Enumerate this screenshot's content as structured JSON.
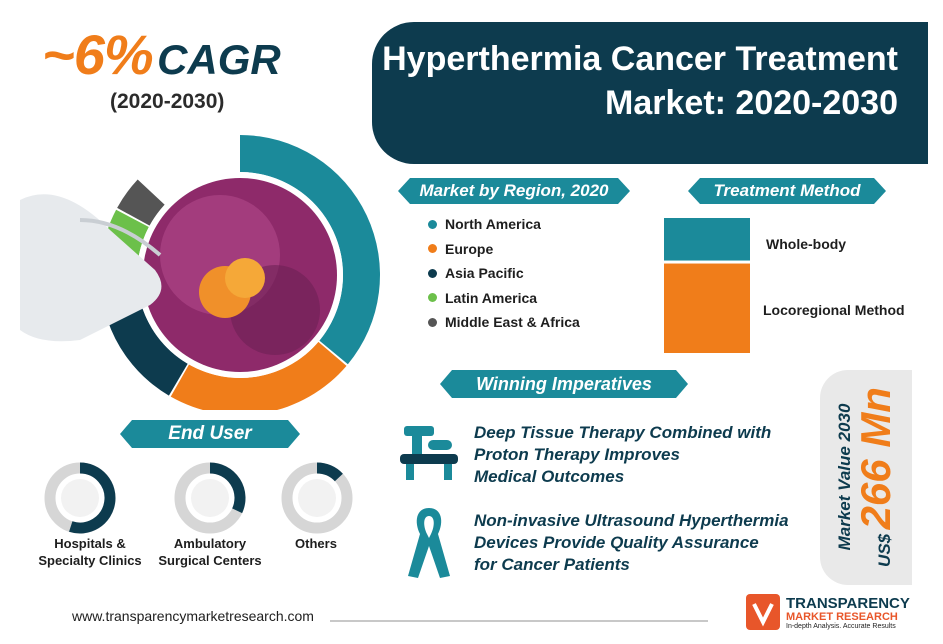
{
  "cagr": {
    "value": "~6%",
    "label": "CAGR",
    "years": "(2020-2030)"
  },
  "title": {
    "line1": "Hyperthermia Cancer Treatment",
    "line2": "Market: 2020-2030"
  },
  "colors": {
    "navy": "#0d3b4e",
    "teal": "#1b8a9a",
    "orange": "#f07d1a",
    "green": "#6cc04a",
    "gray": "#555555"
  },
  "region": {
    "heading": "Market by Region, 2020",
    "legend": [
      {
        "name": "North America",
        "color": "#1b8a9a"
      },
      {
        "name": "Europe",
        "color": "#f07d1a"
      },
      {
        "name": "Asia Pacific",
        "color": "#0d3b4e"
      },
      {
        "name": "Latin America",
        "color": "#6cc04a"
      },
      {
        "name": "Middle East & Africa",
        "color": "#555555"
      }
    ]
  },
  "treatment": {
    "heading": "Treatment Method",
    "items": [
      {
        "name": "Whole-body",
        "color": "#1b8a9a"
      },
      {
        "name": "Locoregional Method",
        "color": "#f07d1a"
      }
    ]
  },
  "end_user": {
    "heading": "End User",
    "items": [
      {
        "line1": "Hospitals &",
        "line2": "Specialty Clinics"
      },
      {
        "line1": "Ambulatory",
        "line2": "Surgical Centers"
      },
      {
        "line1": "Others",
        "line2": ""
      }
    ]
  },
  "imperatives": {
    "heading": "Winning Imperatives",
    "items": [
      {
        "line1": "Deep Tissue Therapy Combined with",
        "line2": "Proton Therapy Improves",
        "line3": "Medical Outcomes",
        "icon": "medical-scanner-icon"
      },
      {
        "line1": "Non-invasive Ultrasound Hyperthermia",
        "line2": "Devices Provide Quality Assurance",
        "line3": "for Cancer Patients",
        "icon": "awareness-ribbon-icon"
      }
    ]
  },
  "market_value": {
    "label": "Market Value 2030",
    "value": "266 Mn",
    "currency": "US$"
  },
  "footer": {
    "url": "www.transparencymarketresearch.com"
  },
  "logo": {
    "line1": "TRANSPARENCY",
    "line2": "MARKET RESEARCH",
    "tagline": "In-depth Analysis. Accurate Results"
  },
  "chart_data": [
    {
      "type": "pie",
      "title": "Market by Region, 2020",
      "series": [
        {
          "name": "North America",
          "value": 36
        },
        {
          "name": "Europe",
          "value": 22
        },
        {
          "name": "Asia Pacific",
          "value": 18
        },
        {
          "name": "Latin America",
          "value": 6
        },
        {
          "name": "Middle East & Africa",
          "value": 4
        }
      ],
      "note": "donut ring; remaining share hidden behind photo"
    },
    {
      "type": "bar",
      "title": "Treatment Method",
      "categories": [
        "Whole-body",
        "Locoregional Method"
      ],
      "values": [
        33,
        67
      ]
    },
    {
      "type": "pie",
      "title": "End User",
      "categories": [
        "Hospitals & Specialty Clinics",
        "Ambulatory Surgical Centers",
        "Others"
      ],
      "values": [
        55,
        32,
        13
      ]
    }
  ]
}
